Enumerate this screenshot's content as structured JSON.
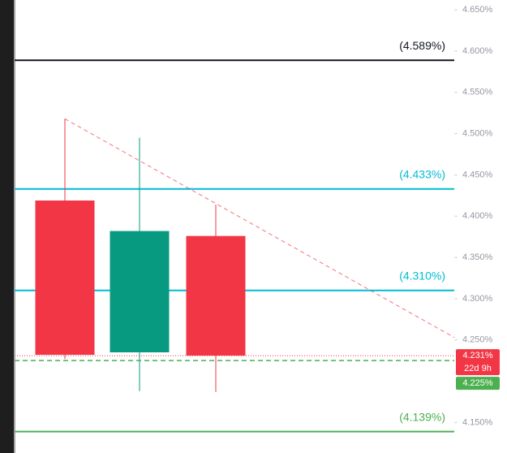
{
  "chart_data": {
    "type": "candlestick",
    "categories": [
      null,
      null,
      null
    ],
    "open": [
      4.419,
      4.235,
      4.376
    ],
    "high": [
      4.518,
      4.495,
      4.414
    ],
    "low": [
      4.227,
      4.188,
      4.187
    ],
    "close": [
      4.232,
      4.382,
      4.231
    ],
    "up_color": "#089981",
    "down_color": "#f23645",
    "ylim": [
      4.113,
      4.662
    ],
    "yticks": [
      {
        "value": 4.65,
        "label": "4.650%"
      },
      {
        "value": 4.6,
        "label": "4.600%"
      },
      {
        "value": 4.55,
        "label": "4.550%"
      },
      {
        "value": 4.5,
        "label": "4.500%"
      },
      {
        "value": 4.45,
        "label": "4.450%"
      },
      {
        "value": 4.4,
        "label": "4.400%"
      },
      {
        "value": 4.35,
        "label": "4.350%"
      },
      {
        "value": 4.3,
        "label": "4.300%"
      },
      {
        "value": 4.25,
        "label": "4.250%"
      },
      {
        "value": 4.15,
        "label": "4.150%"
      }
    ],
    "levels": [
      {
        "value": 4.589,
        "label": "(4.589%)",
        "color": "#131722"
      },
      {
        "value": 4.433,
        "label": "(4.433%)",
        "color": "#00bcd4"
      },
      {
        "value": 4.31,
        "label": "(4.310%)",
        "color": "#00bcd4"
      },
      {
        "value": 4.139,
        "label": "(4.139%)",
        "color": "#4caf50"
      }
    ],
    "trendline": {
      "values": [
        4.518,
        4.253
      ],
      "color": "#f23645"
    },
    "last_price": {
      "value": 4.231,
      "label": "4.231%",
      "countdown": "22d 9h",
      "color": "#f23645"
    },
    "reference_price": {
      "value": 4.225,
      "label": "4.225%",
      "color": "#4caf50"
    }
  }
}
